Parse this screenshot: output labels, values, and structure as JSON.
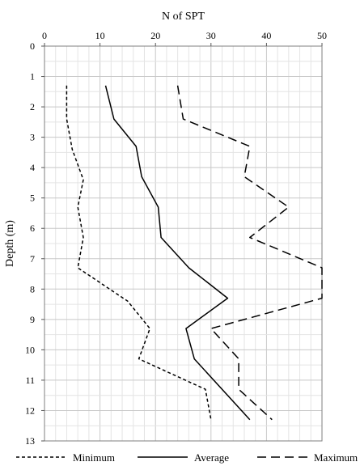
{
  "chart_data": {
    "type": "line",
    "orientation": "depth-profile",
    "xlabel": "N of SPT",
    "ylabel": "Depth (m)",
    "xlim": [
      0,
      50
    ],
    "ylim": [
      0,
      13
    ],
    "y_inverted": true,
    "x_axis_position": "top",
    "x_ticks": [
      0,
      10,
      20,
      30,
      40,
      50
    ],
    "y_ticks": [
      0,
      1,
      2,
      3,
      4,
      5,
      6,
      7,
      8,
      9,
      10,
      11,
      12,
      13
    ],
    "grid": true,
    "legend_position": "bottom",
    "series": [
      {
        "name": "Minimum",
        "line_style": "short-dash",
        "points": [
          [
            4,
            1.3
          ],
          [
            4,
            2
          ],
          [
            4,
            2.4
          ],
          [
            5,
            3.4
          ],
          [
            7,
            4.4
          ],
          [
            6,
            5.3
          ],
          [
            7,
            6.3
          ],
          [
            6,
            7.3
          ],
          [
            15,
            8.4
          ],
          [
            19,
            9.3
          ],
          [
            17,
            10.3
          ],
          [
            29,
            11.3
          ],
          [
            30,
            12.3
          ]
        ]
      },
      {
        "name": "Average",
        "line_style": "solid",
        "points": [
          [
            11,
            1.3
          ],
          [
            12.5,
            2.4
          ],
          [
            16.5,
            3.3
          ],
          [
            17.5,
            4.3
          ],
          [
            20.5,
            5.3
          ],
          [
            21,
            6.3
          ],
          [
            26,
            7.3
          ],
          [
            33,
            8.3
          ],
          [
            25.5,
            9.3
          ],
          [
            27,
            10.3
          ],
          [
            37,
            12.3
          ]
        ]
      },
      {
        "name": "Maximum",
        "line_style": "long-dash",
        "points": [
          [
            24,
            1.3
          ],
          [
            25,
            2.4
          ],
          [
            37,
            3.3
          ],
          [
            36,
            4.3
          ],
          [
            44,
            5.3
          ],
          [
            37,
            6.3
          ],
          [
            50,
            7.3
          ],
          [
            50,
            8.3
          ],
          [
            30,
            9.3
          ],
          [
            35,
            10.3
          ],
          [
            35,
            11.3
          ],
          [
            41,
            12.3
          ]
        ]
      }
    ]
  }
}
